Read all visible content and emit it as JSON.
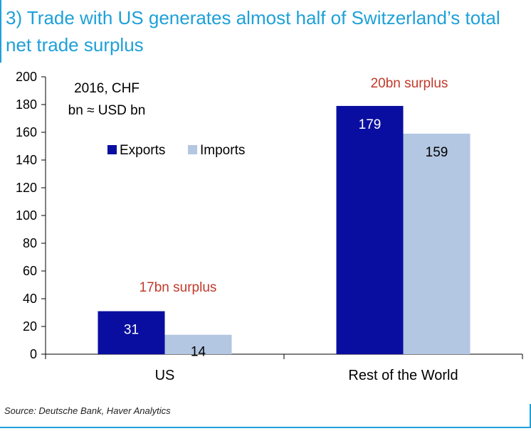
{
  "title": "3) Trade with US generates almost half of Switzerland’s total net trade surplus",
  "source": "Source: Deutsche Bank, Haver Analytics",
  "chart_data": {
    "type": "bar",
    "categories": [
      "US",
      "Rest of the World"
    ],
    "series": [
      {
        "name": "Exports",
        "values": [
          31,
          179
        ],
        "color": "#0a0ea0"
      },
      {
        "name": "Imports",
        "values": [
          14,
          159
        ],
        "color": "#b3c6e2"
      }
    ],
    "ylim": [
      0,
      200
    ],
    "yticks": [
      0,
      20,
      40,
      60,
      80,
      100,
      120,
      140,
      160,
      180,
      200
    ],
    "unit_note": [
      "2016, CHF",
      "bn ≈ USD bn"
    ],
    "annotations": [
      "17bn surplus",
      "20bn surplus"
    ],
    "annotation_color": "#c0392b",
    "legend_position": "upper-left",
    "grid": false
  }
}
